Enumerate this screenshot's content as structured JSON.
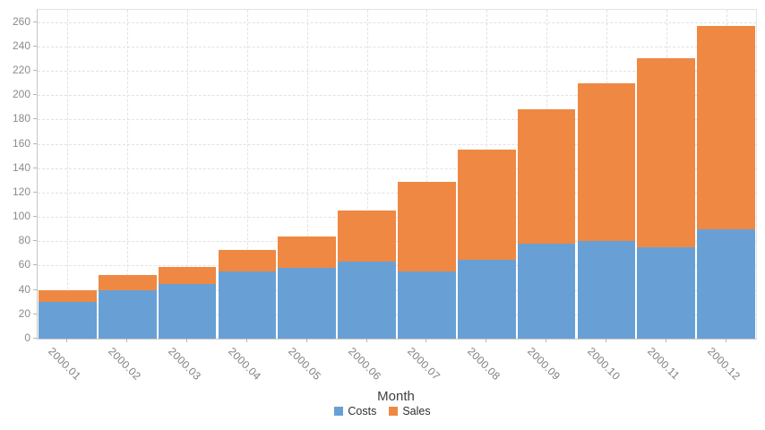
{
  "chart_data": {
    "type": "bar",
    "stacked": true,
    "title": "",
    "xlabel": "Month",
    "ylabel": "",
    "categories": [
      "2000.01",
      "2000.02",
      "2000.03",
      "2000.04",
      "2000.05",
      "2000.06",
      "2000.07",
      "2000.08",
      "2000.09",
      "2000.10",
      "2000.11",
      "2000.12"
    ],
    "series": [
      {
        "name": "Costs",
        "color": "#68a0d6",
        "values": [
          30,
          40,
          45,
          55,
          58,
          63,
          55,
          65,
          78,
          80,
          75,
          90
        ]
      },
      {
        "name": "Sales",
        "color": "#ee8843",
        "values": [
          10,
          12,
          14,
          18,
          26,
          42,
          74,
          90,
          110,
          130,
          155,
          167
        ]
      }
    ],
    "stack_totals": [
      40,
      52,
      59,
      73,
      84,
      105,
      129,
      155,
      188,
      210,
      230,
      257
    ],
    "ylim": [
      0,
      270
    ],
    "y_tick_step": 20,
    "y_tick_max": 260,
    "grid": "dashed",
    "legend_position": "bottom",
    "style": {
      "grid_color": "#e2e2e2",
      "axis_color": "#c6c6c6",
      "tick_color": "#b5b5b5",
      "tick_text_color": "#8b8b8b"
    }
  }
}
